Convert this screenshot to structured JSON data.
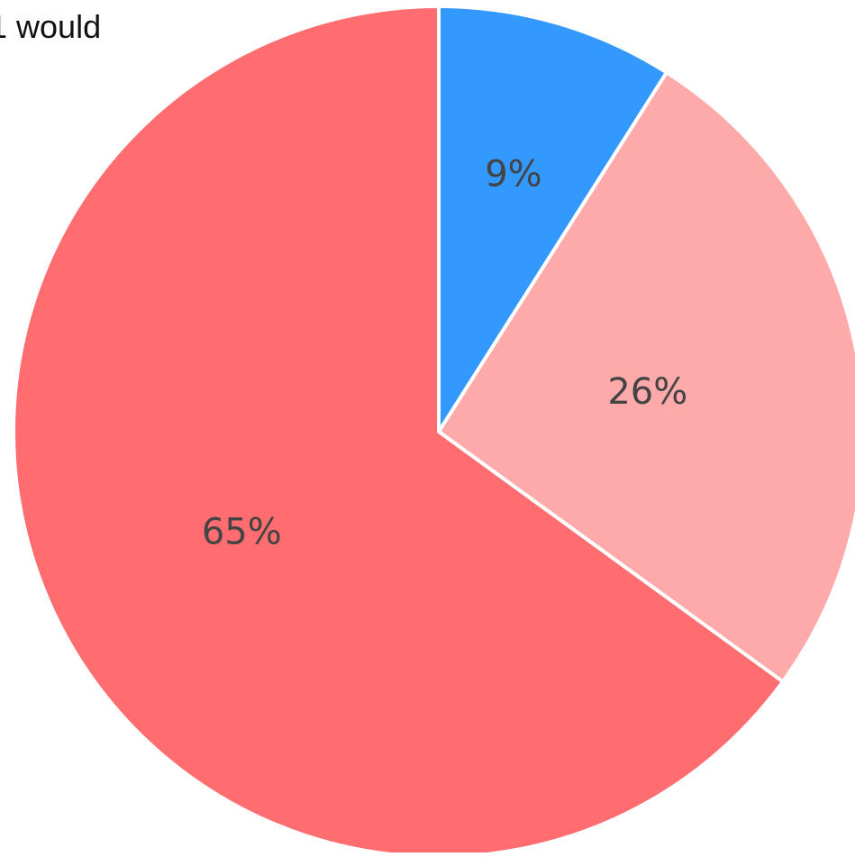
{
  "fragment_text": "1 would",
  "chart_data": {
    "type": "pie",
    "slices": [
      {
        "value": 9,
        "label": "9%",
        "color": "#3399ff"
      },
      {
        "value": 26,
        "label": "26%",
        "color": "#ffaaaa"
      },
      {
        "value": 65,
        "label": "65%",
        "color": "#ff6d70"
      }
    ],
    "start_angle": "12 o'clock",
    "direction": "clockwise",
    "legend": "none"
  }
}
